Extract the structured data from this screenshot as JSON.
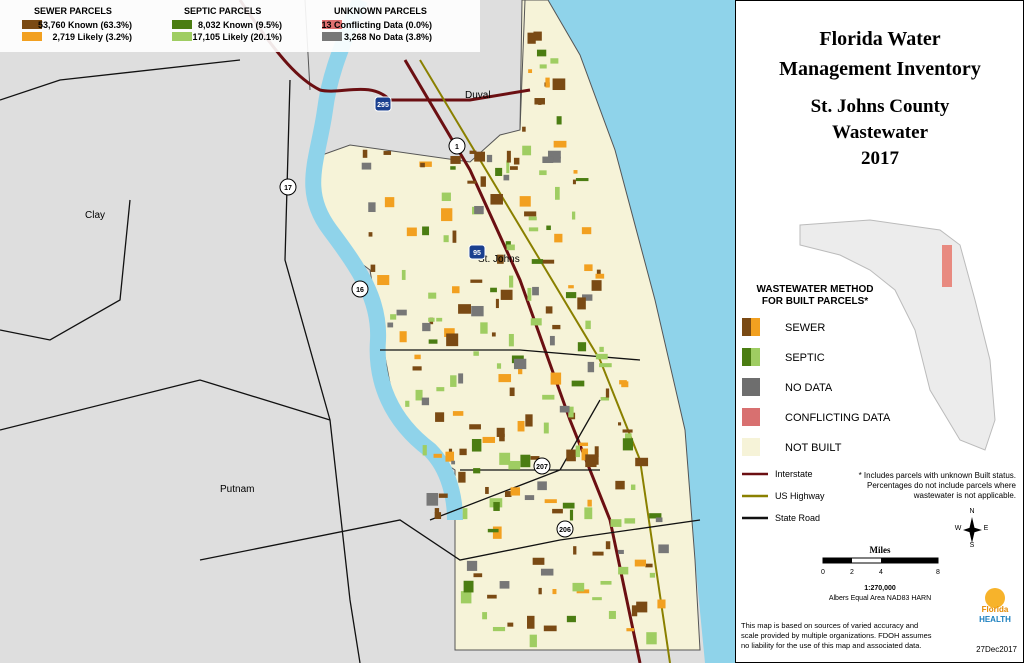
{
  "top_legend": {
    "groups": [
      {
        "title": "SEWER PARCELS",
        "items": [
          "53,760 Known (63.3%)",
          "2,719  Likely (3.2%)"
        ]
      },
      {
        "title": "SEPTIC PARCELS",
        "items": [
          "8,032 Known (9.5%)",
          "17,105 Likely (20.1%)"
        ]
      },
      {
        "title": "UNKNOWN PARCELS",
        "items": [
          "13 Conflicting Data (0.0%)",
          "3,268 No Data (3.8%)"
        ]
      }
    ]
  },
  "map": {
    "place_labels": [
      "Duval",
      "Clay",
      "St. Johns",
      "Putnam"
    ],
    "shields": [
      "295",
      "1",
      "17",
      "95",
      "16",
      "207",
      "206"
    ]
  },
  "panel": {
    "title": [
      "Florida Water",
      "Management Inventory",
      "St. Johns County",
      "Wastewater",
      "2017"
    ],
    "legend_title": [
      "WASTEWATER METHOD",
      "FOR BUILT PARCELS*"
    ],
    "legend": [
      "SEWER",
      "SEPTIC",
      "NO DATA",
      "CONFLICTING DATA",
      "NOT BUILT"
    ],
    "roads": [
      "Interstate",
      "US Highway",
      "State Road"
    ],
    "note": [
      "* Includes parcels with unknown Built status.",
      "Percentages do not include parcels where",
      "wastewater is not applicable."
    ],
    "compass": [
      "N",
      "S",
      "E",
      "W"
    ],
    "scale": {
      "title": "Miles",
      "ticks": [
        "0",
        "2",
        "4",
        "8"
      ],
      "ratio": "1:270,000",
      "projection": "Albers Equal Area NAD83 HARN"
    },
    "logo": [
      "Florida",
      "HEALTH"
    ],
    "disclaimer": [
      "This map is based on sources of varied accuracy and",
      "scale provided by multiple organizations. FDOH assumes",
      "no liability for the use of this map and associated data."
    ],
    "date": "27Dec2017"
  }
}
